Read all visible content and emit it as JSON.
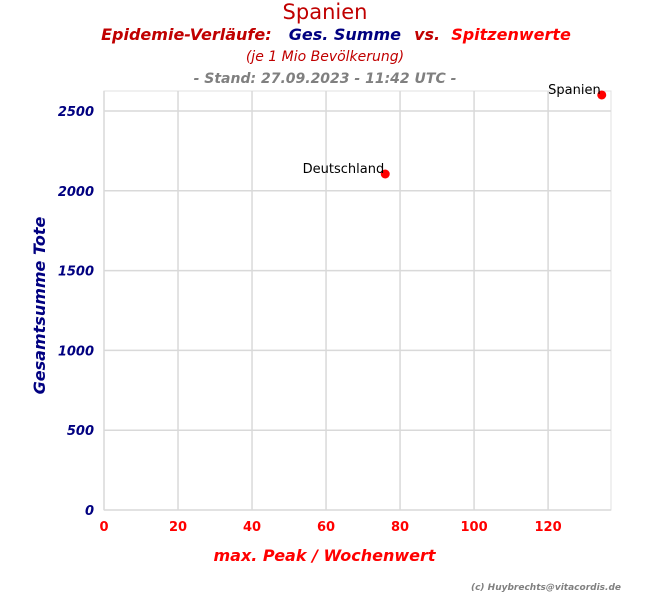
{
  "header": {
    "title": "Spanien",
    "subtitle_part1": "Epidemie-Verläufe:",
    "subtitle_part2": "Ges. Summe",
    "subtitle_part3": "vs.",
    "subtitle_part4": "Spitzenwerte",
    "population_note": "(je 1 Mio Bevölkerung)",
    "stand": "- Stand: 27.09.2023 - 11:42 UTC -"
  },
  "footer": {
    "credit": "(c) Huybrechts@vitacordis.de"
  },
  "chart_data": {
    "type": "scatter",
    "xlabel": "max. Peak / Wochenwert",
    "ylabel": "Gesamtsumme Tote",
    "xlim": [
      0,
      137
    ],
    "ylim": [
      0,
      2625
    ],
    "xticks": [
      0,
      20,
      40,
      60,
      80,
      100,
      120
    ],
    "yticks": [
      0,
      500,
      1000,
      1500,
      2000,
      2500
    ],
    "grid": true,
    "points": [
      {
        "label": "Deutschland",
        "x": 76,
        "y": 2105,
        "color": "#ff0000"
      },
      {
        "label": "Spanien",
        "x": 134.5,
        "y": 2600,
        "color": "#ff0000"
      }
    ]
  }
}
